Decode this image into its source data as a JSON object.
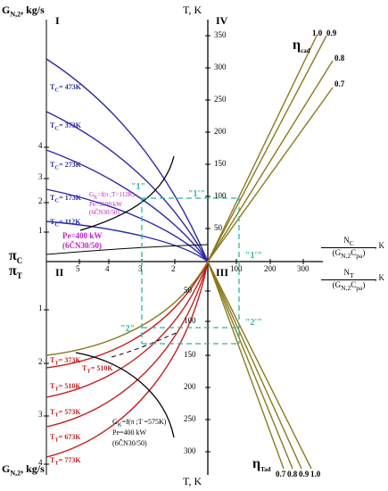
{
  "labels": {
    "gk_top": "G",
    "gk_top_sub": "N,2",
    "gk_top_unit": ", kg/s",
    "gk_bottom": "G",
    "gk_bottom_sub": "N,2",
    "gk_bottom_unit": ", kg/s",
    "t_top": "T, K",
    "t_bottom": "T, K",
    "q1": "I",
    "q2": "II",
    "q3": "III",
    "q4": "IV",
    "pi_c": "π",
    "pi_c_sub": "C",
    "pi_t": "π",
    "pi_t_sub": "T",
    "frac_top_num": "N",
    "frac_top_num_sub": "C",
    "frac_top_den": "(G",
    "frac_top_den_sub": "N,2",
    "frac_top_den2": "C",
    "frac_top_den2_sub": "pa",
    "frac_top_den_end": ")",
    "frac_top_unit": ", K",
    "frac_bot_num": "N",
    "frac_bot_num_sub": "T",
    "frac_bot_den": "(G",
    "frac_bot_den_sub": "N,2",
    "frac_bot_den2": "C",
    "frac_bot_den2_sub": "pa",
    "frac_bot_den_end": ")",
    "frac_bot_unit": ", K",
    "eta_cad": "η",
    "eta_cad_sub": "cad",
    "eta_tad": "η",
    "eta_tad_sub": "Tad"
  },
  "quadrant_I": {
    "curves": [
      {
        "label": "T",
        "sub": "C",
        "value": "= 473K"
      },
      {
        "label": "T",
        "sub": "C",
        "value": "= 373K"
      },
      {
        "label": "T",
        "sub": "C",
        "value": "= 273K"
      },
      {
        "label": "T",
        "sub": "C",
        "value": "= 173K"
      },
      {
        "label": "T",
        "sub": "C",
        "value": "= 112K"
      }
    ],
    "gk_func": "G",
    "gk_func_sub": "K",
    "gk_func_rest": "=f(π ;T=112K)",
    "pe_small": "Pe=3500 kW",
    "engine_small": "(6ČN30/50)",
    "pe_main": "Pe=400 kW",
    "engine_main": "(6ČN30/50)"
  },
  "quadrant_III": {
    "curves": [
      {
        "label": "T",
        "sub": "T",
        "value": "= 373K"
      },
      {
        "label": "T",
        "sub": "T",
        "value": "= 510K"
      },
      {
        "label": "T",
        "sub": "T",
        "value": "= 573K"
      },
      {
        "label": "T",
        "sub": "T",
        "value": "= 673K"
      },
      {
        "label": "T",
        "sub": "T",
        "value": "= 773K"
      }
    ],
    "dashed_label": "T",
    "dashed_label_sub": "T",
    "dashed_label_value": "= 510K",
    "gk_func": "G",
    "gk_func_sub": "K",
    "gk_func_rest": "=f(π ;T =575K)",
    "pe": "Pe=400 kW",
    "engine": "(6ČN30/50)"
  },
  "markers": {
    "m1": "\"1\"",
    "m1p": "\"1'\"",
    "m1pp": "\"1'\"",
    "m2": "\"2\"",
    "m2p": "\"2'\""
  },
  "axes": {
    "pi_ticks_top": [
      "5",
      "4",
      "3",
      "2"
    ],
    "pi_ticks_bottom": [
      "5",
      "4",
      "3",
      "2"
    ],
    "gk_ticks_top": [
      "4",
      "3",
      "2",
      "1"
    ],
    "gk_ticks_bottom": [
      "1",
      "2",
      "3",
      "4"
    ],
    "t_ticks_top": [
      "350",
      "300",
      "250",
      "200",
      "150",
      "100",
      "50"
    ],
    "t_ticks_bottom": [
      "50",
      "100",
      "150",
      "200",
      "250",
      "300"
    ],
    "x_ticks_right": [
      "100",
      "200",
      "300"
    ],
    "eta_c_values": [
      "1.0",
      "0.9",
      "0.8",
      "0.7"
    ],
    "eta_t_values": [
      "0.7",
      "0.8",
      "0.9",
      "1.0"
    ]
  },
  "colors": {
    "compressor_curves": "#2a2aa8",
    "turbine_curves": "#c41e1e",
    "efficiency_lines": "#8a7a1e",
    "guide_dashed": "#2bb5a0",
    "label_magenta": "#c020c0",
    "axis": "#000000"
  }
}
